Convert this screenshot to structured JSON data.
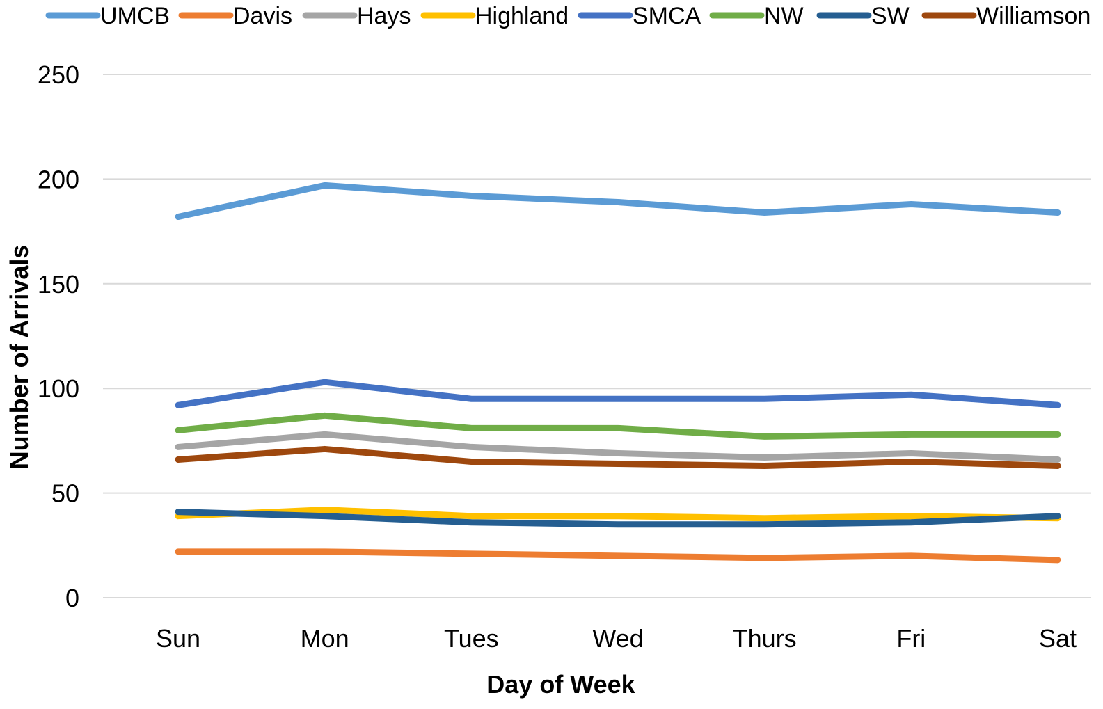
{
  "chart_data": {
    "type": "line",
    "categories": [
      "Sun",
      "Mon",
      "Tues",
      "Wed",
      "Thurs",
      "Fri",
      "Sat"
    ],
    "series": [
      {
        "name": "UMCB",
        "color": "#5b9bd5",
        "values": [
          182,
          197,
          192,
          189,
          184,
          188,
          184
        ]
      },
      {
        "name": "Davis",
        "color": "#ed7d31",
        "values": [
          22,
          22,
          21,
          20,
          19,
          20,
          18
        ]
      },
      {
        "name": "Hays",
        "color": "#a5a5a5",
        "values": [
          72,
          78,
          72,
          69,
          67,
          69,
          66
        ]
      },
      {
        "name": "Highland",
        "color": "#ffc000",
        "values": [
          39,
          42,
          39,
          39,
          38,
          39,
          38
        ]
      },
      {
        "name": "SMCA",
        "color": "#4472c4",
        "values": [
          92,
          103,
          95,
          95,
          95,
          97,
          92
        ]
      },
      {
        "name": "NW",
        "color": "#70ad47",
        "values": [
          80,
          87,
          81,
          81,
          77,
          78,
          78
        ]
      },
      {
        "name": "SW",
        "color": "#255e91",
        "values": [
          41,
          39,
          36,
          35,
          35,
          36,
          39
        ]
      },
      {
        "name": "Williamson",
        "color": "#9e480e",
        "values": [
          66,
          71,
          65,
          64,
          63,
          65,
          63
        ]
      }
    ],
    "xlabel": "Day of Week",
    "ylabel": "Number of Arrivals",
    "ylim": [
      0,
      250
    ],
    "yticks": [
      "0",
      "50",
      "100",
      "150",
      "200",
      "250"
    ],
    "grid": true,
    "legend_position": "top"
  }
}
